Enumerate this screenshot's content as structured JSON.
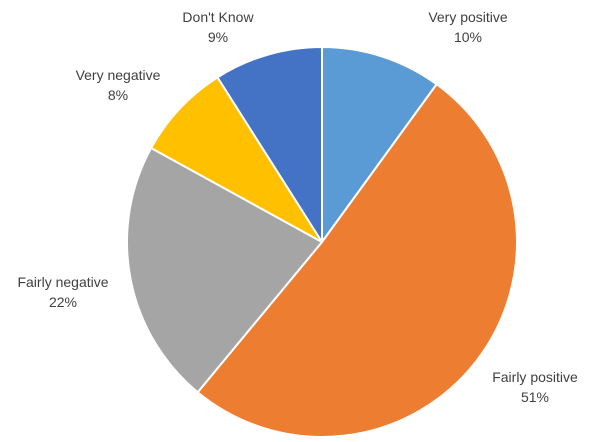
{
  "chart_data": {
    "type": "pie",
    "title": "",
    "start_angle_deg": 0,
    "direction": "clockwise",
    "slices": [
      {
        "label": "Very positive",
        "value": 10,
        "value_label": "10%",
        "color": "#5b9bd5"
      },
      {
        "label": "Fairly positive",
        "value": 51,
        "value_label": "51%",
        "color": "#ed7d31"
      },
      {
        "label": "Fairly negative",
        "value": 22,
        "value_label": "22%",
        "color": "#a5a5a5"
      },
      {
        "label": "Very negative",
        "value": 8,
        "value_label": "8%",
        "color": "#ffc000"
      },
      {
        "label": "Don't Know",
        "value": 9,
        "value_label": "9%",
        "color": "#4472c4"
      }
    ],
    "slice_border_color": "#ffffff",
    "label_color": "#404040"
  }
}
